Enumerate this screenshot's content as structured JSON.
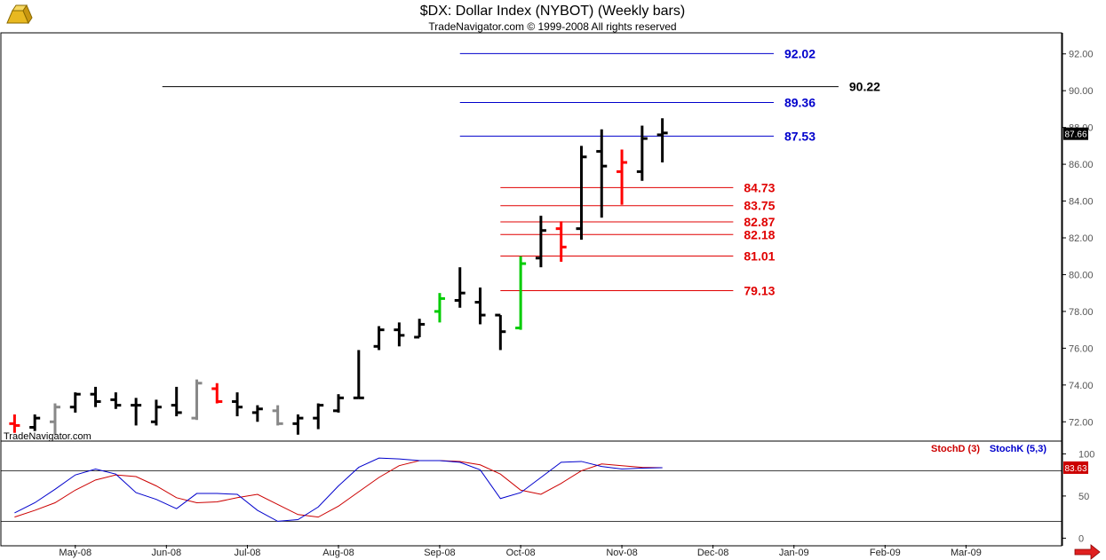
{
  "header": {
    "title": "$DX:  Dollar Index (NYBOT)  (Weekly bars)",
    "subtitle": "TradeNavigator.com © 1999-2008 All rights reserved",
    "watermark": "TradeNavigator.com",
    "logo_icon": "gold-bar-logo-icon",
    "scroll_arrow_icon": "red-right-arrow-icon"
  },
  "colors": {
    "up_bar": "#000000",
    "down_bar": "#ff0000",
    "neutral_bar": "#888888",
    "green_bar": "#00cc00",
    "blue_level": "#0000cc",
    "red_level": "#e00000",
    "black_level": "#000000",
    "stoch_d": "#cc0000",
    "stoch_k": "#0000cc",
    "grid": "#d8d8d8"
  },
  "chart_data": [
    {
      "type": "ohlc",
      "title": "$DX:  Dollar Index (NYBOT)  (Weekly bars)",
      "ylim": [
        71,
        93
      ],
      "yticks": [
        "72.00",
        "74.00",
        "76.00",
        "78.00",
        "80.00",
        "82.00",
        "84.00",
        "86.00",
        "88.00",
        "90.00",
        "92.00"
      ],
      "ytick_values": [
        72,
        74,
        76,
        78,
        80,
        82,
        84,
        86,
        88,
        90,
        92
      ],
      "xlim": [
        0,
        52
      ],
      "xtick_labels": [
        "May-08",
        "Jun-08",
        "Jul-08",
        "Aug-08",
        "Sep-08",
        "Oct-08",
        "Nov-08",
        "Dec-08",
        "Jan-09",
        "Feb-09",
        "Mar-09"
      ],
      "xtick_positions": [
        3.5,
        8.0,
        12.0,
        16.5,
        21.5,
        25.5,
        30.5,
        35.0,
        39.0,
        43.5,
        47.5
      ],
      "last_value": "87.66",
      "last_value_y": 87.66,
      "bars": [
        {
          "x": 0.5,
          "o": 71.9,
          "h": 72.4,
          "l": 71.4,
          "c": 71.8,
          "color": "down"
        },
        {
          "x": 1.5,
          "o": 71.7,
          "h": 72.4,
          "l": 71.5,
          "c": 72.2,
          "color": "up"
        },
        {
          "x": 2.5,
          "o": 72.0,
          "h": 73.0,
          "l": 71.3,
          "c": 72.8,
          "color": "neutral"
        },
        {
          "x": 3.5,
          "o": 72.8,
          "h": 73.6,
          "l": 72.5,
          "c": 73.5,
          "color": "up"
        },
        {
          "x": 4.5,
          "o": 73.5,
          "h": 73.9,
          "l": 72.8,
          "c": 73.1,
          "color": "up"
        },
        {
          "x": 5.5,
          "o": 73.2,
          "h": 73.6,
          "l": 72.7,
          "c": 72.9,
          "color": "up"
        },
        {
          "x": 6.5,
          "o": 72.9,
          "h": 73.3,
          "l": 71.8,
          "c": 72.9,
          "color": "up"
        },
        {
          "x": 7.5,
          "o": 72.0,
          "h": 73.2,
          "l": 71.8,
          "c": 72.8,
          "color": "up"
        },
        {
          "x": 8.5,
          "o": 72.9,
          "h": 73.9,
          "l": 72.3,
          "c": 72.5,
          "color": "up"
        },
        {
          "x": 9.5,
          "o": 72.2,
          "h": 74.3,
          "l": 72.1,
          "c": 74.1,
          "color": "neutral"
        },
        {
          "x": 10.5,
          "o": 73.8,
          "h": 74.1,
          "l": 73.0,
          "c": 73.1,
          "color": "down"
        },
        {
          "x": 11.5,
          "o": 73.1,
          "h": 73.6,
          "l": 72.3,
          "c": 72.8,
          "color": "up"
        },
        {
          "x": 12.5,
          "o": 72.5,
          "h": 72.9,
          "l": 72.0,
          "c": 72.7,
          "color": "up"
        },
        {
          "x": 13.5,
          "o": 72.6,
          "h": 72.9,
          "l": 71.8,
          "c": 71.9,
          "color": "neutral"
        },
        {
          "x": 14.5,
          "o": 71.9,
          "h": 72.4,
          "l": 71.3,
          "c": 72.2,
          "color": "up"
        },
        {
          "x": 15.5,
          "o": 72.2,
          "h": 73.0,
          "l": 71.6,
          "c": 72.9,
          "color": "up"
        },
        {
          "x": 16.5,
          "o": 72.6,
          "h": 73.5,
          "l": 72.5,
          "c": 73.3,
          "color": "up"
        },
        {
          "x": 17.5,
          "o": 73.3,
          "h": 75.9,
          "l": 73.3,
          "c": 73.3,
          "color": "up"
        },
        {
          "x": 18.5,
          "o": 76.1,
          "h": 77.2,
          "l": 75.9,
          "c": 77.0,
          "color": "up"
        },
        {
          "x": 19.5,
          "o": 77.0,
          "h": 77.4,
          "l": 76.1,
          "c": 76.7,
          "color": "up"
        },
        {
          "x": 20.5,
          "o": 76.6,
          "h": 77.6,
          "l": 76.6,
          "c": 77.3,
          "color": "up"
        },
        {
          "x": 21.5,
          "o": 78.0,
          "h": 79.0,
          "l": 77.4,
          "c": 78.7,
          "color": "green"
        },
        {
          "x": 22.5,
          "o": 78.6,
          "h": 80.4,
          "l": 78.2,
          "c": 79.0,
          "color": "up"
        },
        {
          "x": 23.5,
          "o": 78.5,
          "h": 79.3,
          "l": 77.3,
          "c": 77.8,
          "color": "up"
        },
        {
          "x": 24.5,
          "o": 77.8,
          "h": 77.8,
          "l": 75.9,
          "c": 76.9,
          "color": "up"
        },
        {
          "x": 25.5,
          "o": 77.1,
          "h": 81.0,
          "l": 77.0,
          "c": 80.6,
          "color": "green"
        },
        {
          "x": 26.5,
          "o": 80.9,
          "h": 83.2,
          "l": 80.4,
          "c": 82.4,
          "color": "up"
        },
        {
          "x": 27.5,
          "o": 82.5,
          "h": 82.9,
          "l": 80.7,
          "c": 81.5,
          "color": "down"
        },
        {
          "x": 28.5,
          "o": 82.5,
          "h": 87.0,
          "l": 81.9,
          "c": 86.4,
          "color": "up"
        },
        {
          "x": 29.5,
          "o": 86.7,
          "h": 87.9,
          "l": 83.1,
          "c": 85.9,
          "color": "up"
        },
        {
          "x": 30.5,
          "o": 85.6,
          "h": 86.8,
          "l": 83.8,
          "c": 86.1,
          "color": "down"
        },
        {
          "x": 31.5,
          "o": 85.6,
          "h": 88.1,
          "l": 85.1,
          "c": 87.4,
          "color": "up"
        },
        {
          "x": 32.5,
          "o": 87.6,
          "h": 88.5,
          "l": 86.1,
          "c": 87.7,
          "color": "up"
        }
      ],
      "levels": [
        {
          "value": 92.02,
          "label": "92.02",
          "color": "blue",
          "x0": 22.5,
          "x1": 38.0
        },
        {
          "value": 90.22,
          "label": "90.22",
          "color": "black",
          "x0": 7.8,
          "x1": 41.2
        },
        {
          "value": 89.36,
          "label": "89.36",
          "color": "blue",
          "x0": 22.5,
          "x1": 38.0
        },
        {
          "value": 87.53,
          "label": "87.53",
          "color": "blue",
          "x0": 22.5,
          "x1": 38.0
        },
        {
          "value": 84.73,
          "label": "84.73",
          "color": "red",
          "x0": 24.5,
          "x1": 36.0
        },
        {
          "value": 83.75,
          "label": "83.75",
          "color": "red",
          "x0": 24.5,
          "x1": 36.0
        },
        {
          "value": 82.87,
          "label": "82.87",
          "color": "red",
          "x0": 24.5,
          "x1": 36.0
        },
        {
          "value": 82.18,
          "label": "82.18",
          "color": "red",
          "x0": 24.5,
          "x1": 36.0
        },
        {
          "value": 81.01,
          "label": "81.01",
          "color": "red",
          "x0": 24.5,
          "x1": 36.0
        },
        {
          "value": 79.13,
          "label": "79.13",
          "color": "red",
          "x0": 24.5,
          "x1": 36.0
        }
      ]
    },
    {
      "type": "line",
      "title": "",
      "ylim": [
        -8,
        112
      ],
      "yticks": [
        "0",
        "50",
        "100"
      ],
      "ytick_values": [
        0,
        50,
        100
      ],
      "reference_lines": [
        20,
        80
      ],
      "legend": [
        "StochD (3)",
        "StochK (5,3)"
      ],
      "legend_position": "top-right",
      "last_value": "83.63",
      "last_value_y": 83.63,
      "x": [
        0.5,
        1.5,
        2.5,
        3.5,
        4.5,
        5.5,
        6.5,
        7.5,
        8.5,
        9.5,
        10.5,
        11.5,
        12.5,
        13.5,
        14.5,
        15.5,
        16.5,
        17.5,
        18.5,
        19.5,
        20.5,
        21.5,
        22.5,
        23.5,
        24.5,
        25.5,
        26.5,
        27.5,
        28.5,
        29.5,
        30.5,
        31.5,
        32.5
      ],
      "series": [
        {
          "name": "StochD (3)",
          "color": "stoch_d",
          "values": [
            25,
            33,
            42,
            57,
            69,
            75,
            73,
            62,
            48,
            42,
            43,
            48,
            52,
            40,
            28,
            25,
            38,
            55,
            72,
            86,
            92,
            92,
            91,
            87,
            76,
            57,
            52,
            65,
            80,
            88,
            86,
            84,
            83.6
          ]
        },
        {
          "name": "StochK (5,3)",
          "color": "stoch_k",
          "values": [
            30,
            42,
            58,
            75,
            82,
            76,
            54,
            46,
            35,
            53,
            53,
            52,
            33,
            20,
            22,
            37,
            62,
            84,
            95,
            94,
            92,
            92,
            90,
            81,
            47,
            54,
            72,
            90,
            91,
            85,
            82,
            83,
            83.6
          ]
        }
      ]
    }
  ]
}
